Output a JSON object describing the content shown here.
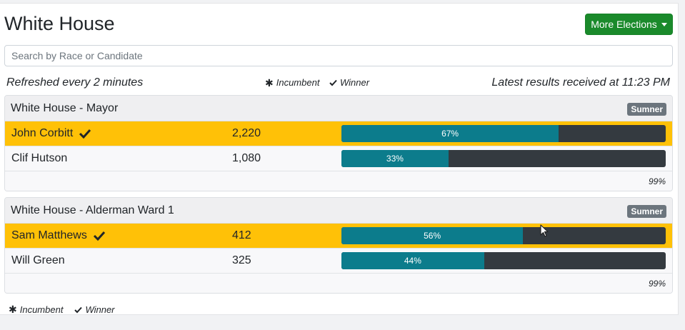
{
  "header": {
    "title": "White House",
    "more_elections_label": "More Elections"
  },
  "search": {
    "placeholder": "Search by Race or Candidate",
    "value": ""
  },
  "info": {
    "refreshed": "Refreshed every 2 minutes",
    "incumbent_label": "Incumbent",
    "winner_label": "Winner",
    "latest": "Latest results received at 11:23 PM"
  },
  "races": [
    {
      "title": "White House - Mayor",
      "county": "Sumner",
      "reporting": "99%",
      "candidates": [
        {
          "name": "John Corbitt",
          "votes": "2,220",
          "percent_label": "67%",
          "percent": 67,
          "winner": true
        },
        {
          "name": "Clif Hutson",
          "votes": "1,080",
          "percent_label": "33%",
          "percent": 33,
          "winner": false
        }
      ]
    },
    {
      "title": "White House - Alderman Ward 1",
      "county": "Sumner",
      "reporting": "99%",
      "candidates": [
        {
          "name": "Sam Matthews",
          "votes": "412",
          "percent_label": "56%",
          "percent": 56,
          "winner": true
        },
        {
          "name": "Will Green",
          "votes": "325",
          "percent_label": "44%",
          "percent": 44,
          "winner": false
        }
      ]
    }
  ],
  "footer": {
    "incumbent_label": "Incumbent",
    "winner_label": "Winner"
  },
  "colors": {
    "winner_row": "#ffc107",
    "bar_fill": "#0c7c8c",
    "bar_track": "#343a40",
    "button_green": "#1a8a2b"
  }
}
